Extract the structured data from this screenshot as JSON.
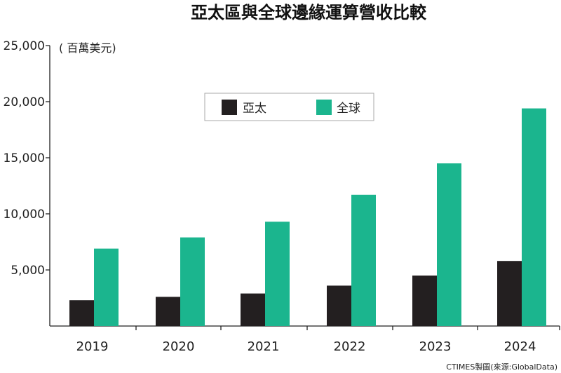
{
  "chart_data": {
    "type": "bar",
    "title": "亞太區與全球邊緣運算營收比較",
    "unit_label": "( 百萬美元)",
    "categories": [
      "2019",
      "2020",
      "2021",
      "2022",
      "2023",
      "2024"
    ],
    "series": [
      {
        "name": "亞太",
        "color": "#231f20",
        "values": [
          2300,
          2600,
          2900,
          3600,
          4500,
          5800
        ]
      },
      {
        "name": "全球",
        "color": "#1bb58e",
        "values": [
          6900,
          7900,
          9300,
          11700,
          14500,
          19400
        ]
      }
    ],
    "ylim": [
      0,
      25000
    ],
    "yticks": [
      "5,000",
      "10,000",
      "15,000",
      "20,000",
      "25,000"
    ],
    "ytick_values": [
      5000,
      10000,
      15000,
      20000,
      25000
    ],
    "legend_position": "top-center",
    "grid": false,
    "source": "CTIMES製圖(來源:GlobalData)"
  }
}
